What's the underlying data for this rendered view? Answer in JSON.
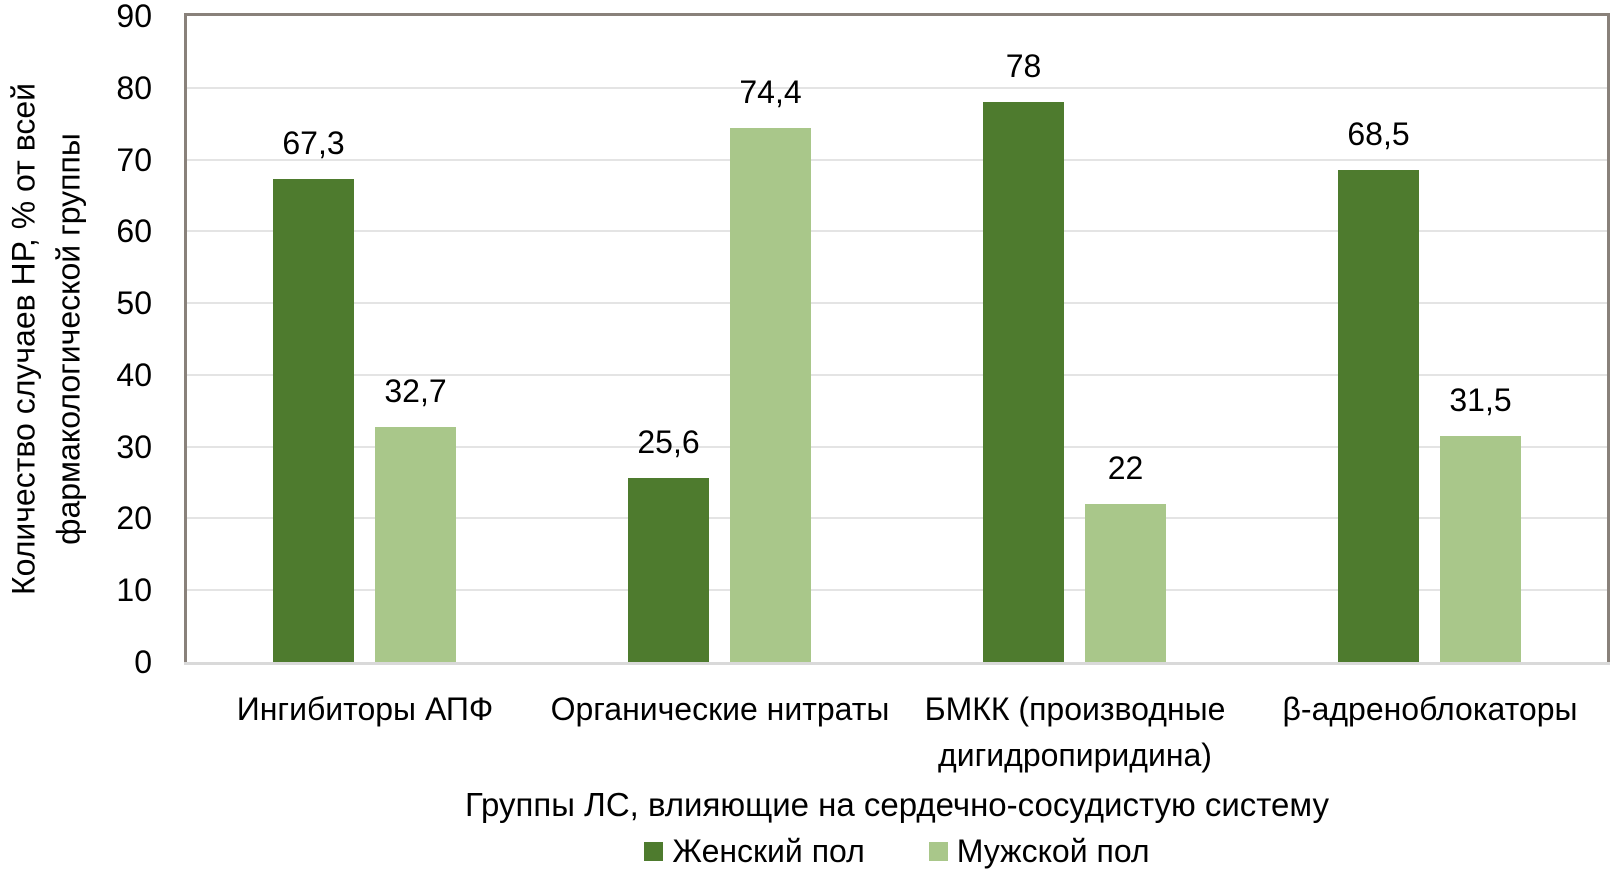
{
  "chart_data": {
    "type": "bar",
    "title": "",
    "categories": [
      "Ингибиторы АПФ",
      "Органические нитраты",
      "БМКК (производные дигидропиридина)",
      "β-адреноблокаторы"
    ],
    "series": [
      {
        "name": "Женский пол",
        "color": "#4e7b2e",
        "values": [
          67.3,
          25.6,
          78,
          68.5
        ],
        "labels": [
          "67,3",
          "25,6",
          "78",
          "68,5"
        ]
      },
      {
        "name": "Мужской пол",
        "color": "#a9c78a",
        "values": [
          32.7,
          74.4,
          22,
          31.5
        ],
        "labels": [
          "32,7",
          "74,4",
          "22",
          "31,5"
        ]
      }
    ],
    "xlabel": "Группы ЛС, влияющие на сердечно-сосудистую систему",
    "ylabel": "Количество случаев НР, % от всей фармакологической группы",
    "ylabel_lines": [
      "Количество случаев НР, % от всей",
      "фармакологической группы"
    ],
    "ylim": [
      0,
      90
    ],
    "yticks": [
      0,
      10,
      20,
      30,
      40,
      50,
      60,
      70,
      80,
      90
    ],
    "ytick_labels": [
      "0",
      "10",
      "20",
      "30",
      "40",
      "50",
      "60",
      "70",
      "80",
      "90"
    ],
    "grid": true,
    "legend_position": "bottom",
    "colors": {
      "series_female": "#4e7b2e",
      "series_male": "#a9c78a",
      "gridline": "#e4e4e4",
      "plot_border": "#89817a",
      "axis_line": "#d9d9d9",
      "text": "#000000"
    }
  }
}
